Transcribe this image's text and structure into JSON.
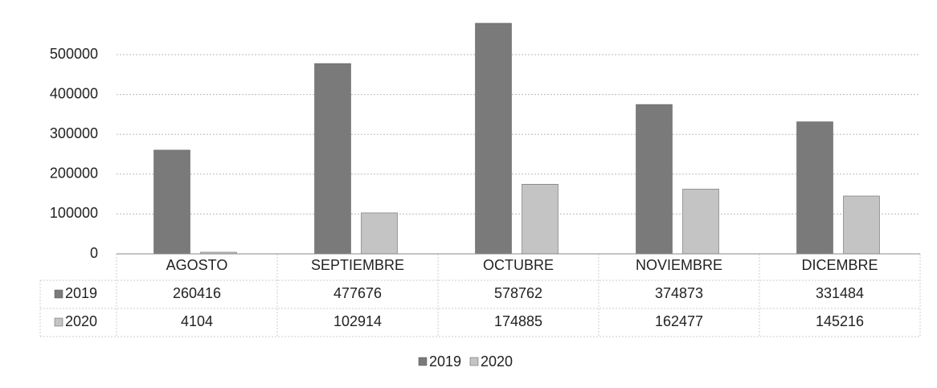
{
  "chart_data": {
    "type": "bar",
    "categories": [
      "AGOSTO",
      "SEPTIEMBRE",
      "OCTUBRE",
      "NOVIEMBRE",
      "DICEMBRE"
    ],
    "series": [
      {
        "name": "2019",
        "color": "#7a7a7a",
        "values": [
          260416,
          477676,
          578762,
          374873,
          331484
        ]
      },
      {
        "name": "2020",
        "color": "#c4c4c4",
        "values": [
          4104,
          102914,
          174885,
          162477,
          145216
        ]
      }
    ],
    "ylim": [
      0,
      600000
    ],
    "yticks": [
      0,
      100000,
      200000,
      300000,
      400000,
      500000
    ],
    "grid": true,
    "legend": "bottom"
  }
}
